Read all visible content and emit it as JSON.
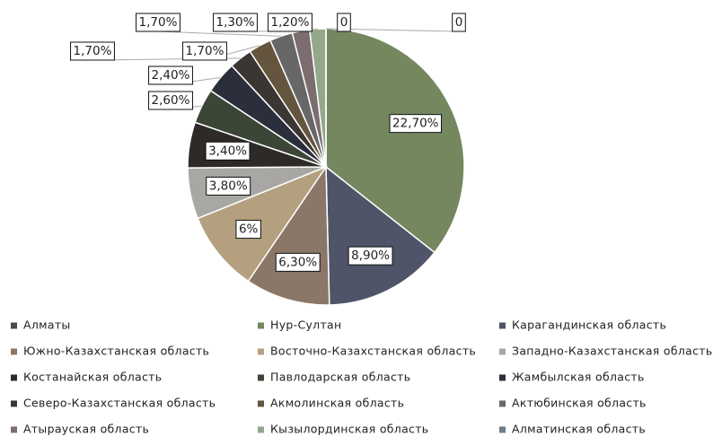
{
  "chart_data": {
    "type": "pie",
    "categories": [
      "Алматы",
      "Нур-Султан",
      "Карагандинская область",
      "Южно-Казахстанская область",
      "Восточно-Казахстанская область",
      "Западно-Казахстанская область",
      "Костанайская область",
      "Павлодарская область",
      "Жамбылская область",
      "Северо-Казахстанская область",
      "Акмолинская область",
      "Актюбинская область",
      "Атырауская область",
      "Кызылординская область",
      "Алматинская область"
    ],
    "values": [
      0,
      22.7,
      8.9,
      6.3,
      6,
      3.8,
      3.4,
      2.6,
      2.4,
      1.7,
      1.7,
      1.7,
      1.3,
      1.2,
      0
    ],
    "value_labels": [
      "0",
      "22,70%",
      "8,90%",
      "6,30%",
      "6%",
      "3,80%",
      "3,40%",
      "2,60%",
      "2,40%",
      "1,70%",
      "1,70%",
      "1,70%",
      "1,30%",
      "1,20%",
      "0"
    ],
    "colors": [
      "#4a4a4a",
      "#74875f",
      "#4f5468",
      "#8a7767",
      "#b49f7e",
      "#a8a7a3",
      "#2e2a28",
      "#3c4637",
      "#2b2e3b",
      "#3b3533",
      "#65553f",
      "#666766",
      "#7d6d6f",
      "#93a78a",
      "#6e7d8a"
    ],
    "legend": "bottom"
  }
}
